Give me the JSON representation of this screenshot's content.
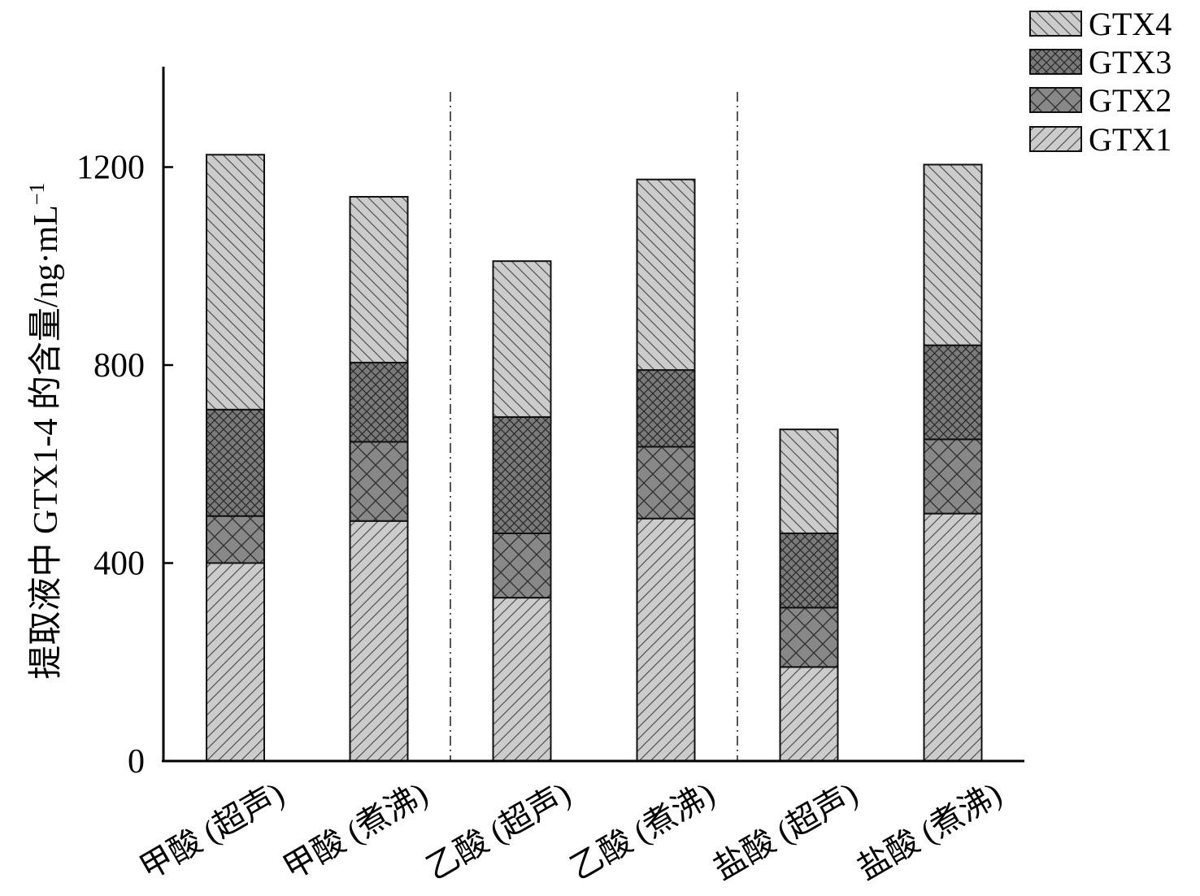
{
  "chart_data": {
    "type": "bar",
    "stacked": true,
    "title": "",
    "xlabel": "",
    "ylabel": "提取液中 GTX1-4 的含量/ng·mL",
    "ylabel_superscript": "−1",
    "ylim": [
      0,
      1400
    ],
    "yticks": [
      0,
      400,
      800,
      1200
    ],
    "grid": false,
    "legend_position": "top-right",
    "group_separators": "dash-dot vertical lines after 甲酸 (煮沸) and 乙酸 (煮沸)",
    "categories": [
      "甲酸 (超声)",
      "甲酸 (煮沸)",
      "乙酸 (超声)",
      "乙酸 (煮沸)",
      "盐酸 (超声)",
      "盐酸 (煮沸)"
    ],
    "series": [
      {
        "name": "GTX1",
        "color": "#cccccc",
        "pattern": "forward-diagonal",
        "values": [
          400,
          485,
          330,
          490,
          190,
          500
        ]
      },
      {
        "name": "GTX2",
        "color": "#888888",
        "pattern": "crosshatch",
        "values": [
          95,
          160,
          130,
          145,
          120,
          150
        ]
      },
      {
        "name": "GTX3",
        "color": "#7a7a7a",
        "pattern": "dense-crosshatch",
        "values": [
          215,
          160,
          235,
          155,
          150,
          190
        ]
      },
      {
        "name": "GTX4",
        "color": "#cccccc",
        "pattern": "back-diagonal",
        "values": [
          515,
          335,
          315,
          385,
          210,
          365
        ]
      }
    ],
    "legend_order": [
      "GTX4",
      "GTX3",
      "GTX2",
      "GTX1"
    ]
  }
}
